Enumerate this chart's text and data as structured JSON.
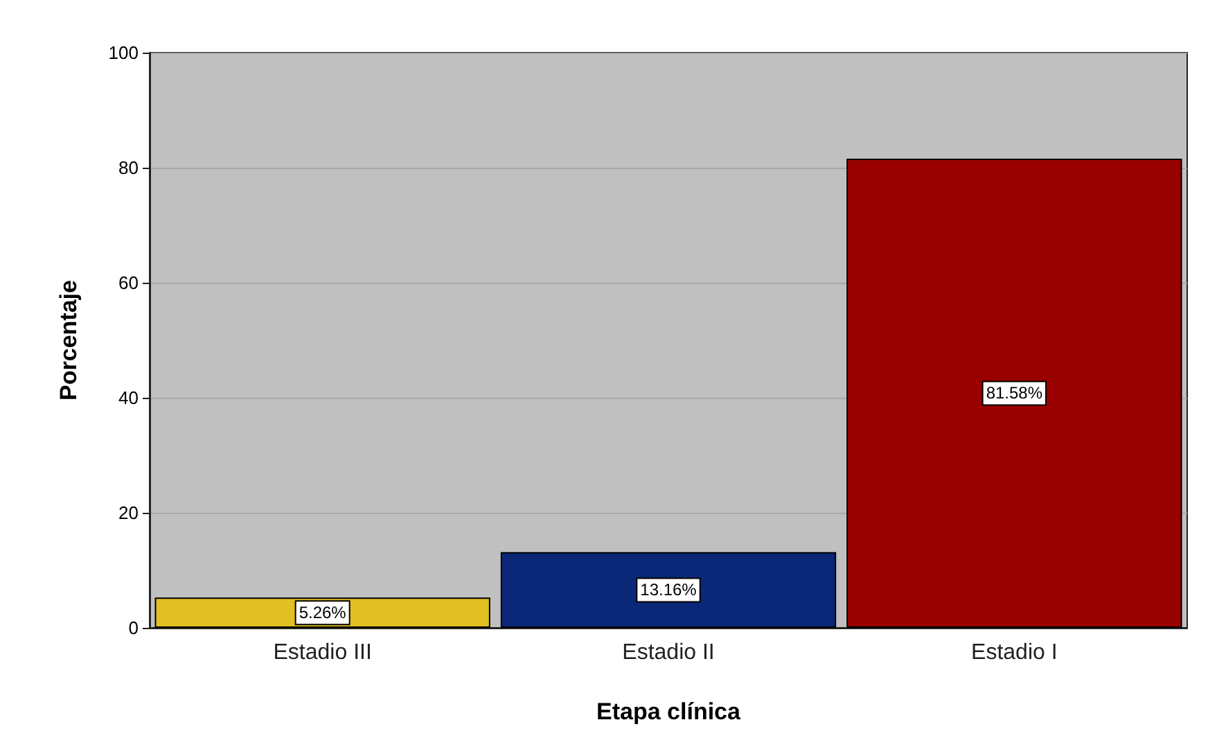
{
  "chart_data": {
    "type": "bar",
    "xlabel": "Etapa clínica",
    "ylabel": "Porcentaje",
    "categories": [
      "Estadio III",
      "Estadio II",
      "Estadio I"
    ],
    "values": [
      5.26,
      13.16,
      81.58
    ],
    "colors": [
      "#e2bf22",
      "#0b2878",
      "#990000"
    ],
    "value_labels": [
      "5.26%",
      "13.16%",
      "81.58%"
    ],
    "ylim": [
      0,
      100
    ],
    "yticks": [
      0,
      20,
      40,
      60,
      80,
      100
    ],
    "grid": "y"
  }
}
